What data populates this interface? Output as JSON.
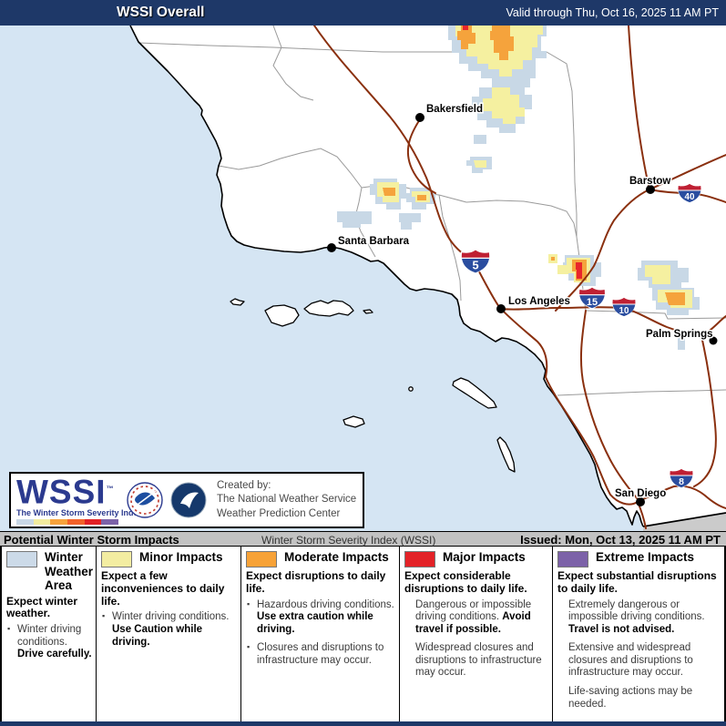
{
  "header": {
    "title": "WSSI Overall",
    "valid_through": "Valid through Thu, Oct 16, 2025 11 AM PT"
  },
  "map": {
    "cities": [
      {
        "name": "Bakersfield"
      },
      {
        "name": "Barstow"
      },
      {
        "name": "Santa Barbara"
      },
      {
        "name": "Los Angeles"
      },
      {
        "name": "Palm Springs"
      },
      {
        "name": "San Diego"
      }
    ],
    "highways": [
      {
        "number": "5"
      },
      {
        "number": "40"
      },
      {
        "number": "15"
      },
      {
        "number": "10"
      },
      {
        "number": "8"
      }
    ]
  },
  "logo_box": {
    "acronym": "WSSI",
    "trademark": "™",
    "tagline": "The Winter Storm Severity Index",
    "created_by": "Created by:",
    "org_line1": "The National Weather Service",
    "org_line2": "Weather Prediction Center",
    "scale_colors": [
      "#c9d8e7",
      "#f1ec9f",
      "#f6a33c",
      "#f2622a",
      "#e32227",
      "#7c62a8"
    ]
  },
  "status_bar": {
    "left": "Potential Winter Storm Impacts",
    "center": "Winter Storm Severity Index (WSSI)",
    "right": "Issued: Mon, Oct 13, 2025 11 AM PT"
  },
  "legend": {
    "columns": [
      {
        "title": "Winter Weather Area",
        "swatch": "#ccdae8",
        "intro": "Expect winter weather.",
        "bullets": true,
        "items": [
          {
            "lead": "Winter driving conditions.",
            "emph": "Drive carefully."
          }
        ]
      },
      {
        "title": "Minor Impacts",
        "swatch": "#f3eda1",
        "intro": "Expect a few inconveniences to daily life.",
        "bullets": true,
        "items": [
          {
            "lead": "Winter driving conditions.",
            "emph": "Use Caution while driving."
          }
        ]
      },
      {
        "title": "Moderate Impacts",
        "swatch": "#f7a237",
        "intro": "Expect disruptions to daily life.",
        "bullets": true,
        "items": [
          {
            "lead": "Hazardous driving conditions.",
            "emph": "Use extra caution while driving."
          },
          {
            "lead": "Closures and disruptions to infrastructure may occur.",
            "emph": ""
          }
        ]
      },
      {
        "title": "Major Impacts",
        "swatch": "#e32227",
        "intro": "Expect considerable disruptions to daily life.",
        "bullets": false,
        "items": [
          {
            "lead": "Dangerous or impossible driving conditions.",
            "emph": "Avoid travel if possible."
          },
          {
            "lead": "Widespread closures and disruptions to infrastructure may occur.",
            "emph": ""
          }
        ]
      },
      {
        "title": "Extreme Impacts",
        "swatch": "#7c62a8",
        "intro": "Expect substantial disruptions to daily life.",
        "bullets": false,
        "items": [
          {
            "lead": "Extremely dangerous or impossible driving conditions.",
            "emph": "Travel is not advised."
          },
          {
            "lead": "Extensive and widespread closures and disruptions to infrastructure may occur.",
            "emph": ""
          },
          {
            "lead": "Life-saving actions may be needed.",
            "emph": ""
          }
        ]
      }
    ]
  }
}
